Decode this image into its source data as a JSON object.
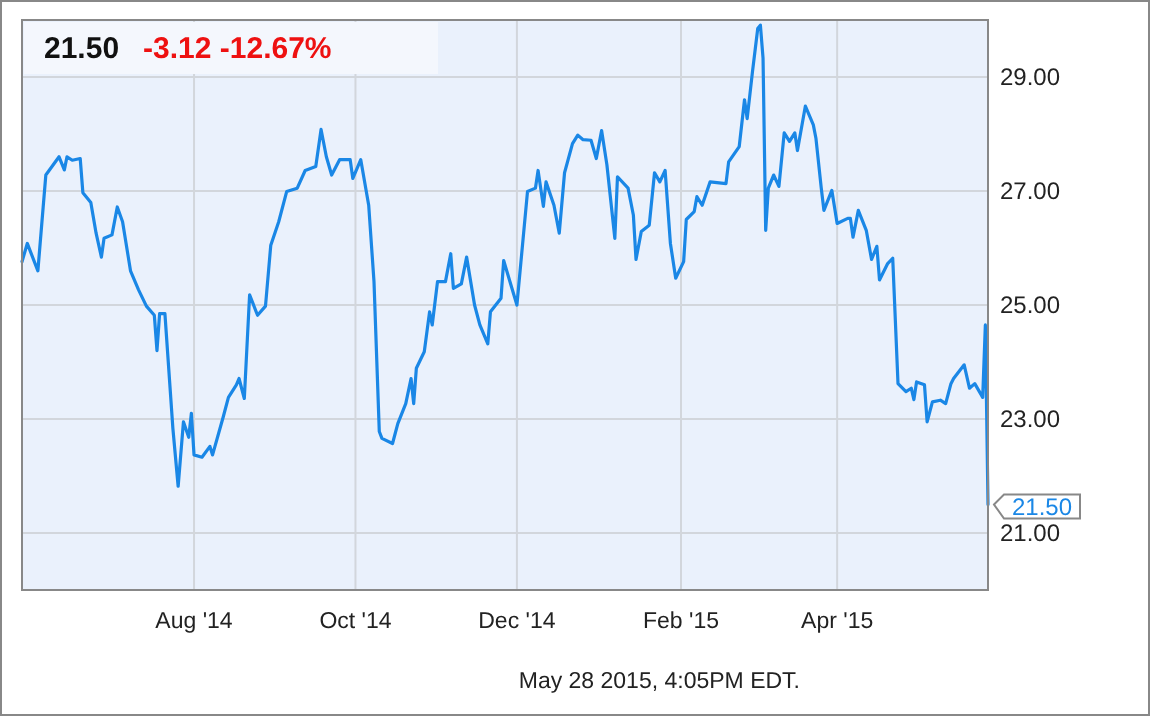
{
  "chart_data": {
    "type": "line",
    "title": "21.50",
    "subtitle": "-3.12  -12.67%",
    "x": [
      "2014-05-28",
      "2014-05-30",
      "2014-06-03",
      "2014-06-06",
      "2014-06-11",
      "2014-06-13",
      "2014-06-14",
      "2014-06-16",
      "2014-06-19",
      "2014-06-20",
      "2014-06-23",
      "2014-06-25",
      "2014-06-27",
      "2014-06-28",
      "2014-07-01",
      "2014-07-03",
      "2014-07-05",
      "2014-07-08",
      "2014-07-11",
      "2014-07-14",
      "2014-07-17",
      "2014-07-18",
      "2014-07-19",
      "2014-07-21",
      "2014-07-24",
      "2014-07-26",
      "2014-07-28",
      "2014-07-30",
      "2014-07-31",
      "2014-08-01",
      "2014-08-04",
      "2014-08-07",
      "2014-08-08",
      "2014-08-12",
      "2014-08-14",
      "2014-08-17",
      "2014-08-18",
      "2014-08-20",
      "2014-08-22",
      "2014-08-25",
      "2014-08-28",
      "2014-08-30",
      "2014-09-02",
      "2014-09-05",
      "2014-09-09",
      "2014-09-12",
      "2014-09-16",
      "2014-09-18",
      "2014-09-20",
      "2014-09-22",
      "2014-09-25",
      "2014-09-29",
      "2014-09-30",
      "2014-10-03",
      "2014-10-06",
      "2014-10-08",
      "2014-10-10",
      "2014-10-11",
      "2014-10-15",
      "2014-10-17",
      "2014-10-20",
      "2014-10-22",
      "2014-10-23",
      "2014-10-24",
      "2014-10-27",
      "2014-10-29",
      "2014-10-30",
      "2014-11-01",
      "2014-11-04",
      "2014-11-06",
      "2014-11-07",
      "2014-11-10",
      "2014-11-12",
      "2014-11-15",
      "2014-11-17",
      "2014-11-20",
      "2014-11-21",
      "2014-11-25",
      "2014-11-26",
      "2014-12-01",
      "2014-12-05",
      "2014-12-08",
      "2014-12-09",
      "2014-12-11",
      "2014-12-12",
      "2014-12-15",
      "2014-12-17",
      "2014-12-19",
      "2014-12-22",
      "2014-12-24",
      "2014-12-26",
      "2014-12-29",
      "2014-12-31",
      "2015-01-02",
      "2015-01-04",
      "2015-01-07",
      "2015-01-08",
      "2015-01-12",
      "2015-01-14",
      "2015-01-15",
      "2015-01-17",
      "2015-01-20",
      "2015-01-22",
      "2015-01-24",
      "2015-01-26",
      "2015-01-28",
      "2015-01-30",
      "2015-02-02",
      "2015-02-03",
      "2015-02-06",
      "2015-02-07",
      "2015-02-09",
      "2015-02-12",
      "2015-02-18",
      "2015-02-19",
      "2015-02-23",
      "2015-02-25",
      "2015-02-26",
      "2015-02-28",
      "2015-03-02",
      "2015-03-03",
      "2015-03-04",
      "2015-03-05",
      "2015-03-06",
      "2015-03-08",
      "2015-03-10",
      "2015-03-12",
      "2015-03-14",
      "2015-03-16",
      "2015-03-17",
      "2015-03-20",
      "2015-03-23",
      "2015-03-24",
      "2015-03-26",
      "2015-03-27",
      "2015-03-30",
      "2015-04-01",
      "2015-04-05",
      "2015-04-06",
      "2015-04-07",
      "2015-04-09",
      "2015-04-12",
      "2015-04-14",
      "2015-04-16",
      "2015-04-17",
      "2015-04-20",
      "2015-04-22",
      "2015-04-24",
      "2015-04-27",
      "2015-04-29",
      "2015-04-30",
      "2015-05-01",
      "2015-05-04",
      "2015-05-05",
      "2015-05-07",
      "2015-05-10",
      "2015-05-12",
      "2015-05-14",
      "2015-05-15",
      "2015-05-19",
      "2015-05-21",
      "2015-05-23",
      "2015-05-26",
      "2015-05-27",
      "2015-05-28"
    ],
    "series": [
      {
        "color": "#1a87e6",
        "values": [
          25.76,
          26.08,
          25.6,
          27.28,
          27.6,
          27.37,
          27.6,
          27.54,
          27.57,
          26.97,
          26.8,
          26.26,
          25.84,
          26.17,
          26.23,
          26.72,
          26.46,
          25.6,
          25.27,
          24.98,
          24.82,
          24.2,
          24.85,
          24.85,
          22.84,
          21.82,
          22.95,
          22.68,
          23.1,
          22.37,
          22.33,
          22.52,
          22.37,
          23.03,
          23.38,
          23.6,
          23.71,
          23.36,
          25.18,
          24.82,
          24.98,
          26.05,
          26.46,
          26.99,
          27.05,
          27.36,
          27.43,
          28.08,
          27.6,
          27.28,
          27.55,
          27.55,
          27.22,
          27.55,
          26.75,
          25.41,
          22.78,
          22.66,
          22.57,
          22.92,
          23.27,
          23.71,
          23.27,
          23.89,
          24.18,
          24.88,
          24.65,
          25.41,
          25.41,
          25.9,
          25.29,
          25.37,
          25.84,
          25.0,
          24.65,
          24.32,
          24.88,
          25.12,
          25.78,
          25.0,
          26.99,
          27.05,
          27.36,
          26.73,
          27.16,
          26.75,
          26.26,
          27.32,
          27.83,
          27.98,
          27.9,
          27.89,
          27.57,
          28.06,
          27.46,
          26.17,
          27.25,
          27.05,
          26.58,
          25.8,
          26.29,
          26.4,
          27.32,
          27.16,
          27.36,
          26.08,
          25.47,
          25.76,
          26.5,
          26.64,
          26.9,
          26.75,
          27.16,
          27.13,
          27.51,
          27.78,
          28.6,
          28.27,
          29.09,
          29.85,
          29.91,
          29.33,
          26.31,
          27.05,
          27.28,
          27.08,
          28.02,
          27.87,
          28.02,
          27.71,
          28.49,
          28.16,
          27.92,
          27.05,
          26.66,
          27.01,
          26.43,
          26.52,
          26.52,
          26.19,
          26.66,
          26.31,
          25.8,
          26.03,
          25.44,
          25.72,
          25.82,
          23.62,
          23.48,
          23.54,
          23.34,
          23.65,
          23.6,
          22.95,
          23.3,
          23.33,
          23.27,
          23.62,
          23.71,
          23.95,
          23.54,
          23.62,
          23.38,
          24.65,
          21.5
        ]
      }
    ],
    "xlim": [
      "2014-05-28",
      "2015-05-28"
    ],
    "xticks": [
      {
        "value": "2014-08-01",
        "label": "Aug '14"
      },
      {
        "value": "2014-10-01",
        "label": "Oct '14"
      },
      {
        "value": "2014-12-01",
        "label": "Dec '14"
      },
      {
        "value": "2015-02-01",
        "label": "Feb '15"
      },
      {
        "value": "2015-04-01",
        "label": "Apr '15"
      }
    ],
    "ylim": [
      20,
      30
    ],
    "yticks": [
      {
        "value": 21,
        "label": "21.00"
      },
      {
        "value": 23,
        "label": "23.00"
      },
      {
        "value": 25,
        "label": "25.00"
      },
      {
        "value": 27,
        "label": "27.00"
      },
      {
        "value": 29,
        "label": "29.00"
      }
    ],
    "grid": true,
    "marker": "none",
    "line_style": "solid",
    "annotations": [
      {
        "text": "21.50",
        "x": "2015-05-28",
        "y": 21.5
      },
      "May 28 2015, 4:05PM EDT."
    ]
  }
}
